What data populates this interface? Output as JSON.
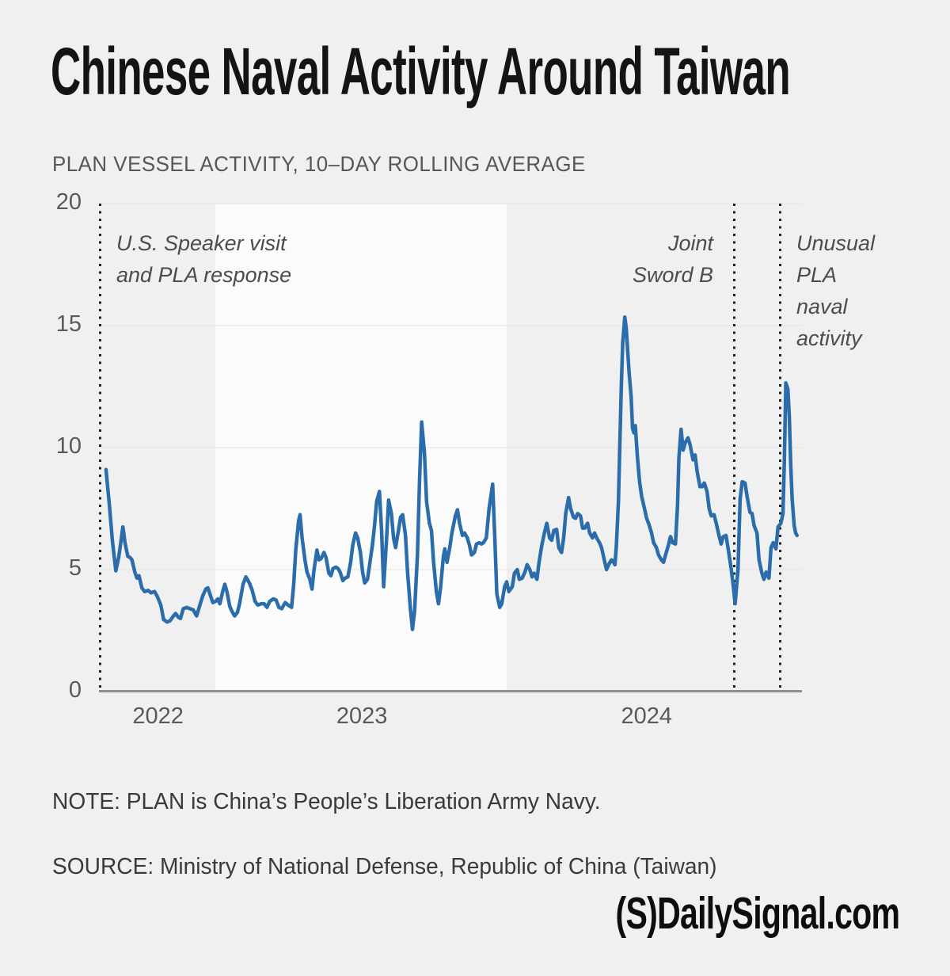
{
  "chart_data": {
    "type": "line",
    "title": "Chinese Naval Activity Around Taiwan",
    "subtitle": "PLAN VESSEL ACTIVITY, 10–DAY ROLLING AVERAGE",
    "ylim": [
      0,
      20
    ],
    "y_ticks": [
      0,
      5,
      10,
      15,
      20
    ],
    "x_ticks": [
      {
        "label": "2022",
        "pos": 0.084
      },
      {
        "label": "2023",
        "pos": 0.374
      },
      {
        "label": "2024",
        "pos": 0.779
      }
    ],
    "grid": true,
    "legend": "none",
    "line_color": "#2b6cab",
    "background_color": "#f0f0f1",
    "highlight_band": {
      "from": 0.166,
      "to": 0.58,
      "color": "#fbfbfb"
    },
    "event_lines": [
      {
        "pos": 0.001,
        "label": "U.S. Speaker visit and PLA response"
      },
      {
        "pos": 0.903,
        "label": "Joint Sword B"
      },
      {
        "pos": 0.968,
        "label": "Unusual PLA naval activity"
      }
    ],
    "annotations": {
      "speaker": "U.S. Speaker visit\nand PLA response",
      "joint_sword": "Joint\nSword B",
      "unusual": "Unusual\nPLA\nnaval\nactivity"
    },
    "series": [
      {
        "name": "PLAN VESSEL ACTIVITY, 10–DAY ROLLING AVERAGE",
        "points": [
          [
            0.01,
            9.1
          ],
          [
            0.015,
            7.6
          ],
          [
            0.019,
            6.2
          ],
          [
            0.024,
            4.95
          ],
          [
            0.028,
            5.5
          ],
          [
            0.032,
            6.3
          ],
          [
            0.034,
            6.75
          ],
          [
            0.037,
            6.1
          ],
          [
            0.041,
            5.55
          ],
          [
            0.044,
            5.5
          ],
          [
            0.047,
            5.4
          ],
          [
            0.051,
            4.9
          ],
          [
            0.054,
            4.65
          ],
          [
            0.057,
            4.75
          ],
          [
            0.061,
            4.25
          ],
          [
            0.065,
            4.1
          ],
          [
            0.07,
            4.15
          ],
          [
            0.074,
            4.05
          ],
          [
            0.079,
            4.1
          ],
          [
            0.083,
            3.9
          ],
          [
            0.088,
            3.55
          ],
          [
            0.092,
            2.95
          ],
          [
            0.097,
            2.85
          ],
          [
            0.101,
            2.9
          ],
          [
            0.106,
            3.1
          ],
          [
            0.109,
            3.2
          ],
          [
            0.113,
            3.05
          ],
          [
            0.116,
            3.0
          ],
          [
            0.12,
            3.4
          ],
          [
            0.125,
            3.45
          ],
          [
            0.129,
            3.4
          ],
          [
            0.134,
            3.35
          ],
          [
            0.139,
            3.1
          ],
          [
            0.143,
            3.5
          ],
          [
            0.148,
            3.95
          ],
          [
            0.152,
            4.2
          ],
          [
            0.155,
            4.25
          ],
          [
            0.159,
            3.9
          ],
          [
            0.162,
            3.65
          ],
          [
            0.166,
            3.7
          ],
          [
            0.169,
            3.8
          ],
          [
            0.172,
            3.6
          ],
          [
            0.176,
            4.1
          ],
          [
            0.179,
            4.4
          ],
          [
            0.182,
            4.1
          ],
          [
            0.186,
            3.5
          ],
          [
            0.189,
            3.3
          ],
          [
            0.193,
            3.1
          ],
          [
            0.197,
            3.25
          ],
          [
            0.2,
            3.6
          ],
          [
            0.205,
            4.4
          ],
          [
            0.209,
            4.7
          ],
          [
            0.214,
            4.45
          ],
          [
            0.218,
            4.15
          ],
          [
            0.222,
            3.7
          ],
          [
            0.226,
            3.55
          ],
          [
            0.231,
            3.6
          ],
          [
            0.235,
            3.6
          ],
          [
            0.239,
            3.45
          ],
          [
            0.243,
            3.7
          ],
          [
            0.248,
            3.8
          ],
          [
            0.252,
            3.75
          ],
          [
            0.256,
            3.45
          ],
          [
            0.26,
            3.4
          ],
          [
            0.265,
            3.65
          ],
          [
            0.269,
            3.55
          ],
          [
            0.274,
            3.45
          ],
          [
            0.277,
            4.4
          ],
          [
            0.28,
            5.8
          ],
          [
            0.284,
            7.0
          ],
          [
            0.286,
            7.25
          ],
          [
            0.289,
            6.3
          ],
          [
            0.293,
            5.4
          ],
          [
            0.296,
            4.9
          ],
          [
            0.3,
            4.6
          ],
          [
            0.303,
            4.2
          ],
          [
            0.306,
            5.0
          ],
          [
            0.31,
            5.8
          ],
          [
            0.313,
            5.4
          ],
          [
            0.316,
            5.45
          ],
          [
            0.32,
            5.7
          ],
          [
            0.323,
            5.5
          ],
          [
            0.327,
            4.85
          ],
          [
            0.33,
            4.75
          ],
          [
            0.333,
            5.05
          ],
          [
            0.337,
            5.1
          ],
          [
            0.34,
            5.05
          ],
          [
            0.343,
            4.9
          ],
          [
            0.347,
            4.55
          ],
          [
            0.35,
            4.65
          ],
          [
            0.354,
            4.7
          ],
          [
            0.358,
            5.3
          ],
          [
            0.361,
            6.0
          ],
          [
            0.365,
            6.5
          ],
          [
            0.368,
            6.3
          ],
          [
            0.372,
            5.7
          ],
          [
            0.375,
            4.9
          ],
          [
            0.378,
            4.45
          ],
          [
            0.382,
            4.6
          ],
          [
            0.385,
            5.2
          ],
          [
            0.389,
            6.0
          ],
          [
            0.392,
            6.8
          ],
          [
            0.395,
            7.8
          ],
          [
            0.399,
            8.2
          ],
          [
            0.402,
            6.6
          ],
          [
            0.405,
            4.3
          ],
          [
            0.409,
            6.2
          ],
          [
            0.412,
            7.85
          ],
          [
            0.416,
            7.3
          ],
          [
            0.419,
            6.3
          ],
          [
            0.422,
            5.9
          ],
          [
            0.426,
            6.6
          ],
          [
            0.429,
            7.15
          ],
          [
            0.432,
            7.25
          ],
          [
            0.436,
            6.4
          ],
          [
            0.439,
            4.9
          ],
          [
            0.443,
            3.4
          ],
          [
            0.446,
            2.55
          ],
          [
            0.449,
            3.3
          ],
          [
            0.453,
            5.6
          ],
          [
            0.456,
            8.6
          ],
          [
            0.459,
            11.05
          ],
          [
            0.463,
            9.8
          ],
          [
            0.466,
            7.8
          ],
          [
            0.47,
            6.9
          ],
          [
            0.473,
            6.6
          ],
          [
            0.476,
            5.3
          ],
          [
            0.48,
            4.1
          ],
          [
            0.483,
            3.6
          ],
          [
            0.486,
            4.3
          ],
          [
            0.49,
            5.55
          ],
          [
            0.492,
            5.85
          ],
          [
            0.495,
            5.3
          ],
          [
            0.499,
            5.9
          ],
          [
            0.502,
            6.5
          ],
          [
            0.507,
            7.2
          ],
          [
            0.51,
            7.45
          ],
          [
            0.513,
            6.9
          ],
          [
            0.517,
            6.4
          ],
          [
            0.52,
            6.5
          ],
          [
            0.524,
            6.3
          ],
          [
            0.527,
            6.0
          ],
          [
            0.53,
            5.6
          ],
          [
            0.534,
            5.7
          ],
          [
            0.537,
            6.05
          ],
          [
            0.541,
            6.1
          ],
          [
            0.544,
            6.05
          ],
          [
            0.547,
            6.1
          ],
          [
            0.551,
            6.3
          ],
          [
            0.555,
            7.5
          ],
          [
            0.56,
            8.5
          ],
          [
            0.563,
            6.4
          ],
          [
            0.566,
            4.0
          ],
          [
            0.57,
            3.45
          ],
          [
            0.573,
            3.6
          ],
          [
            0.577,
            4.3
          ],
          [
            0.58,
            4.5
          ],
          [
            0.583,
            4.1
          ],
          [
            0.588,
            4.3
          ],
          [
            0.591,
            4.85
          ],
          [
            0.595,
            5.0
          ],
          [
            0.598,
            4.6
          ],
          [
            0.602,
            4.65
          ],
          [
            0.606,
            4.9
          ],
          [
            0.609,
            5.2
          ],
          [
            0.613,
            5.0
          ],
          [
            0.616,
            4.7
          ],
          [
            0.619,
            4.85
          ],
          [
            0.623,
            4.6
          ],
          [
            0.626,
            5.3
          ],
          [
            0.63,
            6.0
          ],
          [
            0.634,
            6.55
          ],
          [
            0.637,
            6.9
          ],
          [
            0.641,
            6.3
          ],
          [
            0.644,
            6.2
          ],
          [
            0.647,
            6.6
          ],
          [
            0.651,
            6.65
          ],
          [
            0.654,
            5.9
          ],
          [
            0.658,
            5.7
          ],
          [
            0.661,
            6.3
          ],
          [
            0.664,
            7.3
          ],
          [
            0.668,
            7.95
          ],
          [
            0.671,
            7.5
          ],
          [
            0.675,
            7.15
          ],
          [
            0.678,
            7.1
          ],
          [
            0.681,
            7.3
          ],
          [
            0.685,
            7.2
          ],
          [
            0.688,
            6.7
          ],
          [
            0.691,
            6.7
          ],
          [
            0.695,
            6.9
          ],
          [
            0.698,
            6.5
          ],
          [
            0.702,
            6.3
          ],
          [
            0.705,
            6.5
          ],
          [
            0.708,
            6.3
          ],
          [
            0.712,
            6.1
          ],
          [
            0.715,
            5.9
          ],
          [
            0.718,
            5.5
          ],
          [
            0.722,
            5.0
          ],
          [
            0.725,
            5.2
          ],
          [
            0.729,
            5.4
          ],
          [
            0.732,
            5.3
          ],
          [
            0.734,
            5.2
          ],
          [
            0.736,
            6.0
          ],
          [
            0.739,
            7.8
          ],
          [
            0.741,
            10.2
          ],
          [
            0.743,
            12.5
          ],
          [
            0.745,
            14.3
          ],
          [
            0.748,
            15.35
          ],
          [
            0.75,
            14.9
          ],
          [
            0.752,
            14.0
          ],
          [
            0.754,
            13.1
          ],
          [
            0.757,
            12.1
          ],
          [
            0.759,
            10.8
          ],
          [
            0.761,
            10.6
          ],
          [
            0.763,
            10.9
          ],
          [
            0.766,
            9.6
          ],
          [
            0.769,
            8.6
          ],
          [
            0.772,
            8.0
          ],
          [
            0.776,
            7.5
          ],
          [
            0.779,
            7.1
          ],
          [
            0.783,
            6.8
          ],
          [
            0.786,
            6.5
          ],
          [
            0.789,
            6.1
          ],
          [
            0.793,
            5.9
          ],
          [
            0.796,
            5.6
          ],
          [
            0.8,
            5.4
          ],
          [
            0.803,
            5.3
          ],
          [
            0.806,
            5.6
          ],
          [
            0.81,
            6.0
          ],
          [
            0.813,
            6.35
          ],
          [
            0.816,
            6.1
          ],
          [
            0.82,
            6.05
          ],
          [
            0.823,
            7.6
          ],
          [
            0.825,
            9.6
          ],
          [
            0.828,
            10.75
          ],
          [
            0.831,
            9.9
          ],
          [
            0.834,
            10.2
          ],
          [
            0.838,
            10.4
          ],
          [
            0.841,
            10.1
          ],
          [
            0.845,
            9.5
          ],
          [
            0.848,
            9.7
          ],
          [
            0.851,
            9.0
          ],
          [
            0.855,
            8.4
          ],
          [
            0.858,
            8.4
          ],
          [
            0.861,
            8.55
          ],
          [
            0.865,
            8.2
          ],
          [
            0.868,
            7.5
          ],
          [
            0.871,
            7.2
          ],
          [
            0.875,
            7.25
          ],
          [
            0.878,
            6.9
          ],
          [
            0.882,
            6.4
          ],
          [
            0.885,
            6.05
          ],
          [
            0.888,
            6.35
          ],
          [
            0.892,
            6.4
          ],
          [
            0.895,
            5.85
          ],
          [
            0.899,
            5.1
          ],
          [
            0.902,
            4.4
          ],
          [
            0.905,
            3.6
          ],
          [
            0.909,
            5.0
          ],
          [
            0.912,
            7.9
          ],
          [
            0.915,
            8.6
          ],
          [
            0.919,
            8.55
          ],
          [
            0.922,
            8.0
          ],
          [
            0.926,
            7.35
          ],
          [
            0.929,
            7.3
          ],
          [
            0.932,
            6.8
          ],
          [
            0.936,
            6.5
          ],
          [
            0.939,
            5.4
          ],
          [
            0.943,
            4.85
          ],
          [
            0.946,
            4.6
          ],
          [
            0.949,
            4.9
          ],
          [
            0.953,
            4.65
          ],
          [
            0.956,
            5.9
          ],
          [
            0.959,
            6.1
          ],
          [
            0.963,
            5.85
          ],
          [
            0.966,
            6.75
          ],
          [
            0.97,
            6.9
          ],
          [
            0.973,
            7.3
          ],
          [
            0.975,
            9.5
          ],
          [
            0.977,
            12.65
          ],
          [
            0.98,
            12.4
          ],
          [
            0.982,
            11.3
          ],
          [
            0.984,
            9.3
          ],
          [
            0.986,
            7.9
          ],
          [
            0.989,
            6.8
          ],
          [
            0.991,
            6.5
          ],
          [
            0.993,
            6.4
          ]
        ]
      }
    ]
  },
  "footer": {
    "note": "NOTE: PLAN is China’s People’s Liberation Army Navy.",
    "source": "SOURCE: Ministry of National Defense, Republic of China (Taiwan)",
    "brand": "(S)DailySignal.com"
  }
}
